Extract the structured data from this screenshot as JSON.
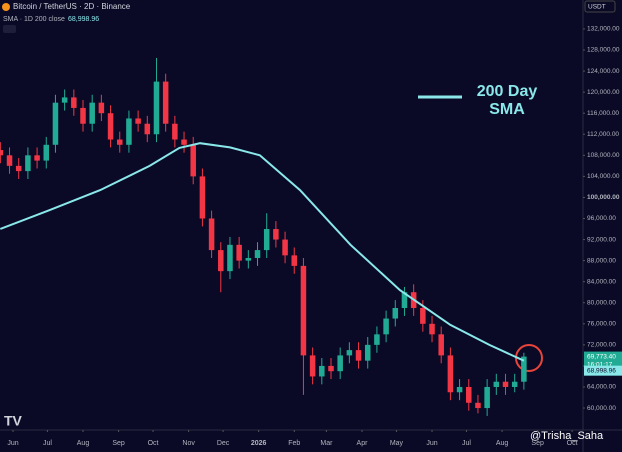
{
  "chart_data": {
    "type": "candlestick",
    "title": "Bitcoin / TetherUS · 2D · Binance",
    "indicator_label": "SMA · 1D 200 close",
    "currency": "USDT",
    "annotation_lines": [
      "200 Day",
      "SMA"
    ],
    "watermark": "@Trisha_Saha",
    "countdown": "16:01:17",
    "price_tag": {
      "value": 69773.4,
      "label": "69,773.40"
    },
    "sma_tag": {
      "value": 68998.96,
      "label": "68,998.96"
    },
    "up_color": "#22ab94",
    "down_color": "#f23645",
    "x": [
      -11,
      -3,
      5,
      13,
      21,
      29,
      37,
      45,
      53,
      61,
      69,
      77,
      85,
      93,
      101,
      109,
      117,
      125,
      133,
      141,
      149,
      157,
      165,
      173,
      181,
      189,
      197,
      205,
      213,
      221,
      229,
      237,
      245,
      253,
      261,
      269,
      277,
      285,
      293,
      301,
      309,
      317,
      325,
      333,
      341,
      349,
      357,
      365,
      373,
      381,
      389,
      397,
      405,
      413,
      421,
      429,
      437,
      445
    ],
    "open": [
      109000,
      108000,
      106000,
      105000,
      108000,
      107000,
      110000,
      118000,
      119000,
      117000,
      114000,
      118000,
      116000,
      111000,
      110000,
      115000,
      114000,
      112000,
      122000,
      114000,
      111000,
      110000,
      104000,
      96000,
      90000,
      86000,
      91000,
      88000,
      88500,
      90000,
      94000,
      92000,
      89000,
      87000,
      70000,
      66000,
      68000,
      67000,
      70000,
      71000,
      69000,
      72000,
      74000,
      77000,
      79000,
      82000,
      79000,
      76000,
      74000,
      70000,
      63000,
      64000,
      61000,
      60000,
      64000,
      65000,
      64000,
      65000
    ],
    "high": [
      110500,
      109500,
      107500,
      109500,
      109500,
      111500,
      119500,
      120500,
      120500,
      118500,
      119500,
      119500,
      117500,
      112500,
      116500,
      116500,
      115500,
      126500,
      123500,
      115500,
      112500,
      111500,
      105500,
      97500,
      91500,
      92500,
      92500,
      90000,
      91500,
      97000,
      95500,
      93500,
      90500,
      88500,
      71500,
      69500,
      69500,
      71500,
      72500,
      72500,
      73500,
      75500,
      78500,
      80500,
      83000,
      83500,
      80500,
      77500,
      75500,
      71500,
      65500,
      65500,
      62500,
      65500,
      66500,
      66500,
      66500,
      70500
    ],
    "low": [
      106500,
      104500,
      103500,
      103500,
      105500,
      105500,
      108500,
      116500,
      115500,
      112500,
      112500,
      114500,
      109500,
      108500,
      108500,
      112500,
      110500,
      110500,
      112500,
      109500,
      108500,
      102500,
      94500,
      88500,
      82000,
      84500,
      86500,
      86500,
      87000,
      88500,
      90500,
      87500,
      85500,
      62500,
      64500,
      64500,
      65500,
      65500,
      68500,
      67500,
      67500,
      70500,
      72500,
      75500,
      77500,
      77500,
      74500,
      72500,
      68500,
      61500,
      61500,
      59500,
      59000,
      58500,
      62500,
      62500,
      63000,
      63500
    ],
    "close": [
      108000,
      106000,
      105000,
      108000,
      107000,
      110000,
      118000,
      119000,
      117000,
      114000,
      118000,
      116000,
      111000,
      110000,
      115000,
      114000,
      112000,
      122000,
      114000,
      111000,
      110000,
      104000,
      96000,
      90000,
      86000,
      91000,
      88000,
      88500,
      90000,
      94000,
      92000,
      89000,
      87000,
      70000,
      66000,
      68000,
      67000,
      70000,
      71000,
      69000,
      72000,
      74000,
      77000,
      79000,
      82000,
      79000,
      76000,
      74000,
      70000,
      63000,
      64000,
      61000,
      60000,
      64000,
      65000,
      64000,
      65000,
      69773.4
    ],
    "sma": {
      "color": "#8ae8ea",
      "x": [
        -11,
        32,
        76,
        119,
        145,
        163,
        189,
        215,
        250,
        294,
        337,
        381,
        415,
        445
      ],
      "values": [
        94000,
        97600,
        101400,
        106000,
        109400,
        110300,
        109500,
        108000,
        101400,
        91000,
        82400,
        75800,
        72000,
        68998.96
      ]
    },
    "xlim": [
      -11.3,
      496.5
    ],
    "xticks": [
      {
        "value": 0,
        "label": "Jun"
      },
      {
        "value": 30,
        "label": "Jul"
      },
      {
        "value": 61,
        "label": "Aug"
      },
      {
        "value": 92,
        "label": "Sep"
      },
      {
        "value": 122,
        "label": "Oct"
      },
      {
        "value": 153,
        "label": "Nov"
      },
      {
        "value": 183,
        "label": "Dec"
      },
      {
        "value": 214,
        "label": "2026"
      },
      {
        "value": 245,
        "label": "Feb"
      },
      {
        "value": 273,
        "label": "Mar"
      },
      {
        "value": 304,
        "label": "Apr"
      },
      {
        "value": 334,
        "label": "May"
      },
      {
        "value": 365,
        "label": "Jun"
      },
      {
        "value": 395,
        "label": "Jul"
      },
      {
        "value": 426,
        "label": "Aug"
      },
      {
        "value": 457,
        "label": "Sep"
      },
      {
        "value": 487,
        "label": "Oct"
      }
    ],
    "ylim": [
      55830,
      137500
    ],
    "yticks": [
      {
        "value": 60000,
        "label": "60,000.00"
      },
      {
        "value": 64000,
        "label": "64,000.00"
      },
      {
        "value": 68000,
        "label": "68,000.00"
      },
      {
        "value": 72000,
        "label": "72,000.00"
      },
      {
        "value": 76000,
        "label": "76,000.00"
      },
      {
        "value": 80000,
        "label": "80,000.00"
      },
      {
        "value": 84000,
        "label": "84,000.00"
      },
      {
        "value": 88000,
        "label": "88,000.00"
      },
      {
        "value": 92000,
        "label": "92,000.00"
      },
      {
        "value": 96000,
        "label": "96,000.00"
      },
      {
        "value": 100000,
        "label": "100,000.00"
      },
      {
        "value": 104000,
        "label": "104,000.00"
      },
      {
        "value": 108000,
        "label": "108,000.00"
      },
      {
        "value": 112000,
        "label": "112,000.00"
      },
      {
        "value": 116000,
        "label": "116,000.00"
      },
      {
        "value": 120000,
        "label": "120,000.00"
      },
      {
        "value": 124000,
        "label": "124,000.00"
      },
      {
        "value": 128000,
        "label": "128,000.00"
      },
      {
        "value": 132000,
        "label": "132,000.00"
      }
    ],
    "grid": false
  }
}
